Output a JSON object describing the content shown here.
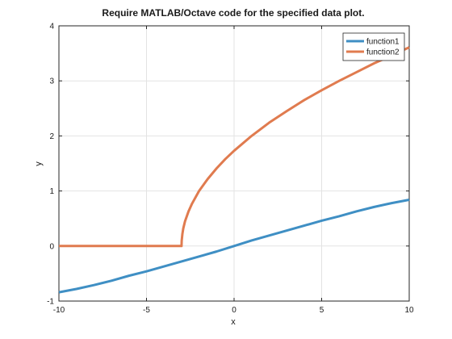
{
  "chart_data": {
    "type": "line",
    "title": "Require MATLAB/Octave code for the specified data plot.",
    "xlabel": "x",
    "ylabel": "y",
    "xlim": [
      -10,
      10
    ],
    "ylim": [
      -1,
      4
    ],
    "x_ticks": [
      "-10",
      "-5",
      "0",
      "5",
      "10"
    ],
    "y_ticks": [
      "-1",
      "0",
      "1",
      "2",
      "3",
      "4"
    ],
    "grid": true,
    "legend_position": "top-right",
    "series": [
      {
        "name": "function1",
        "color": "#3f8fc4",
        "points": [
          [
            -10,
            -0.84
          ],
          [
            -9,
            -0.78
          ],
          [
            -8,
            -0.71
          ],
          [
            -7,
            -0.63
          ],
          [
            -6,
            -0.54
          ],
          [
            -5,
            -0.46
          ],
          [
            -4,
            -0.37
          ],
          [
            -3,
            -0.28
          ],
          [
            -2,
            -0.19
          ],
          [
            -1,
            -0.1
          ],
          [
            0,
            0.0
          ],
          [
            1,
            0.1
          ],
          [
            2,
            0.19
          ],
          [
            3,
            0.28
          ],
          [
            4,
            0.37
          ],
          [
            5,
            0.46
          ],
          [
            6,
            0.54
          ],
          [
            7,
            0.63
          ],
          [
            8,
            0.71
          ],
          [
            9,
            0.78
          ],
          [
            10,
            0.84
          ]
        ]
      },
      {
        "name": "function2",
        "color": "#e07b4f",
        "points": [
          [
            -10,
            0
          ],
          [
            -3.01,
            0
          ],
          [
            -3.0,
            0
          ],
          [
            -2.99,
            0.1
          ],
          [
            -2.95,
            0.22
          ],
          [
            -2.9,
            0.32
          ],
          [
            -2.8,
            0.45
          ],
          [
            -2.6,
            0.63
          ],
          [
            -2.4,
            0.77
          ],
          [
            -2.0,
            1.0
          ],
          [
            -1.5,
            1.22
          ],
          [
            -1.0,
            1.41
          ],
          [
            -0.5,
            1.58
          ],
          [
            0,
            1.73
          ],
          [
            1,
            2.0
          ],
          [
            2,
            2.24
          ],
          [
            3,
            2.45
          ],
          [
            4,
            2.65
          ],
          [
            5,
            2.83
          ],
          [
            6,
            3.0
          ],
          [
            7,
            3.16
          ],
          [
            8,
            3.32
          ],
          [
            9,
            3.46
          ],
          [
            10,
            3.61
          ]
        ]
      }
    ]
  }
}
